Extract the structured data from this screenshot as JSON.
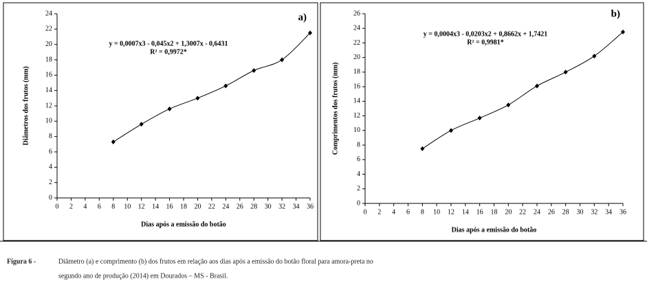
{
  "chart_data": [
    {
      "type": "scatter",
      "panel_label": "a)",
      "x_label": "Dias após a emissão do botão",
      "y_label": "Diâmetros dos frutos (mm)",
      "equation": "y = 0,0007x3 - 0,045x2 + 1,3007x - 0,6431",
      "r_squared": "R² = 0,9972*",
      "x": [
        8,
        12,
        16,
        20,
        24,
        28,
        32,
        36
      ],
      "values": [
        7.3,
        9.6,
        11.6,
        13.0,
        14.6,
        16.6,
        18.0,
        21.5
      ],
      "xlim": [
        0,
        36
      ],
      "xticks": [
        0,
        2,
        4,
        6,
        8,
        10,
        12,
        14,
        16,
        18,
        20,
        22,
        24,
        26,
        28,
        30,
        32,
        34,
        36
      ],
      "ylim": [
        0,
        24
      ],
      "yticks": [
        0,
        2,
        4,
        6,
        8,
        10,
        12,
        14,
        16,
        18,
        20,
        22,
        24
      ],
      "color": "#000000",
      "trend_line": true
    },
    {
      "type": "scatter",
      "panel_label": "b)",
      "x_label": "Dias após a emissão do botão",
      "y_label": "Comprimentos dos frutos (mm)",
      "equation": "y = 0,0004x3 - 0,0203x2 + 0,8662x + 1,7421",
      "r_squared": "R² = 0,9981*",
      "x": [
        8,
        12,
        16,
        20,
        24,
        28,
        32,
        36
      ],
      "values": [
        7.5,
        10.0,
        11.7,
        13.5,
        16.1,
        18.0,
        20.2,
        23.5
      ],
      "xlim": [
        0,
        36
      ],
      "xticks": [
        0,
        2,
        4,
        6,
        8,
        10,
        12,
        14,
        16,
        18,
        20,
        22,
        24,
        26,
        28,
        30,
        32,
        34,
        36
      ],
      "ylim": [
        0,
        26
      ],
      "yticks": [
        0,
        2,
        4,
        6,
        8,
        10,
        12,
        14,
        16,
        18,
        20,
        22,
        24,
        26
      ],
      "color": "#000000",
      "trend_line": true
    }
  ],
  "caption": {
    "label": "Figura 6 -",
    "line1": "Diâmetro (a) e comprimento (b) dos frutos em relação aos dias após a emissão do botão floral para amora-preta no",
    "line2": "segundo ano de produção (2014) em Dourados – MS - Brasil."
  }
}
